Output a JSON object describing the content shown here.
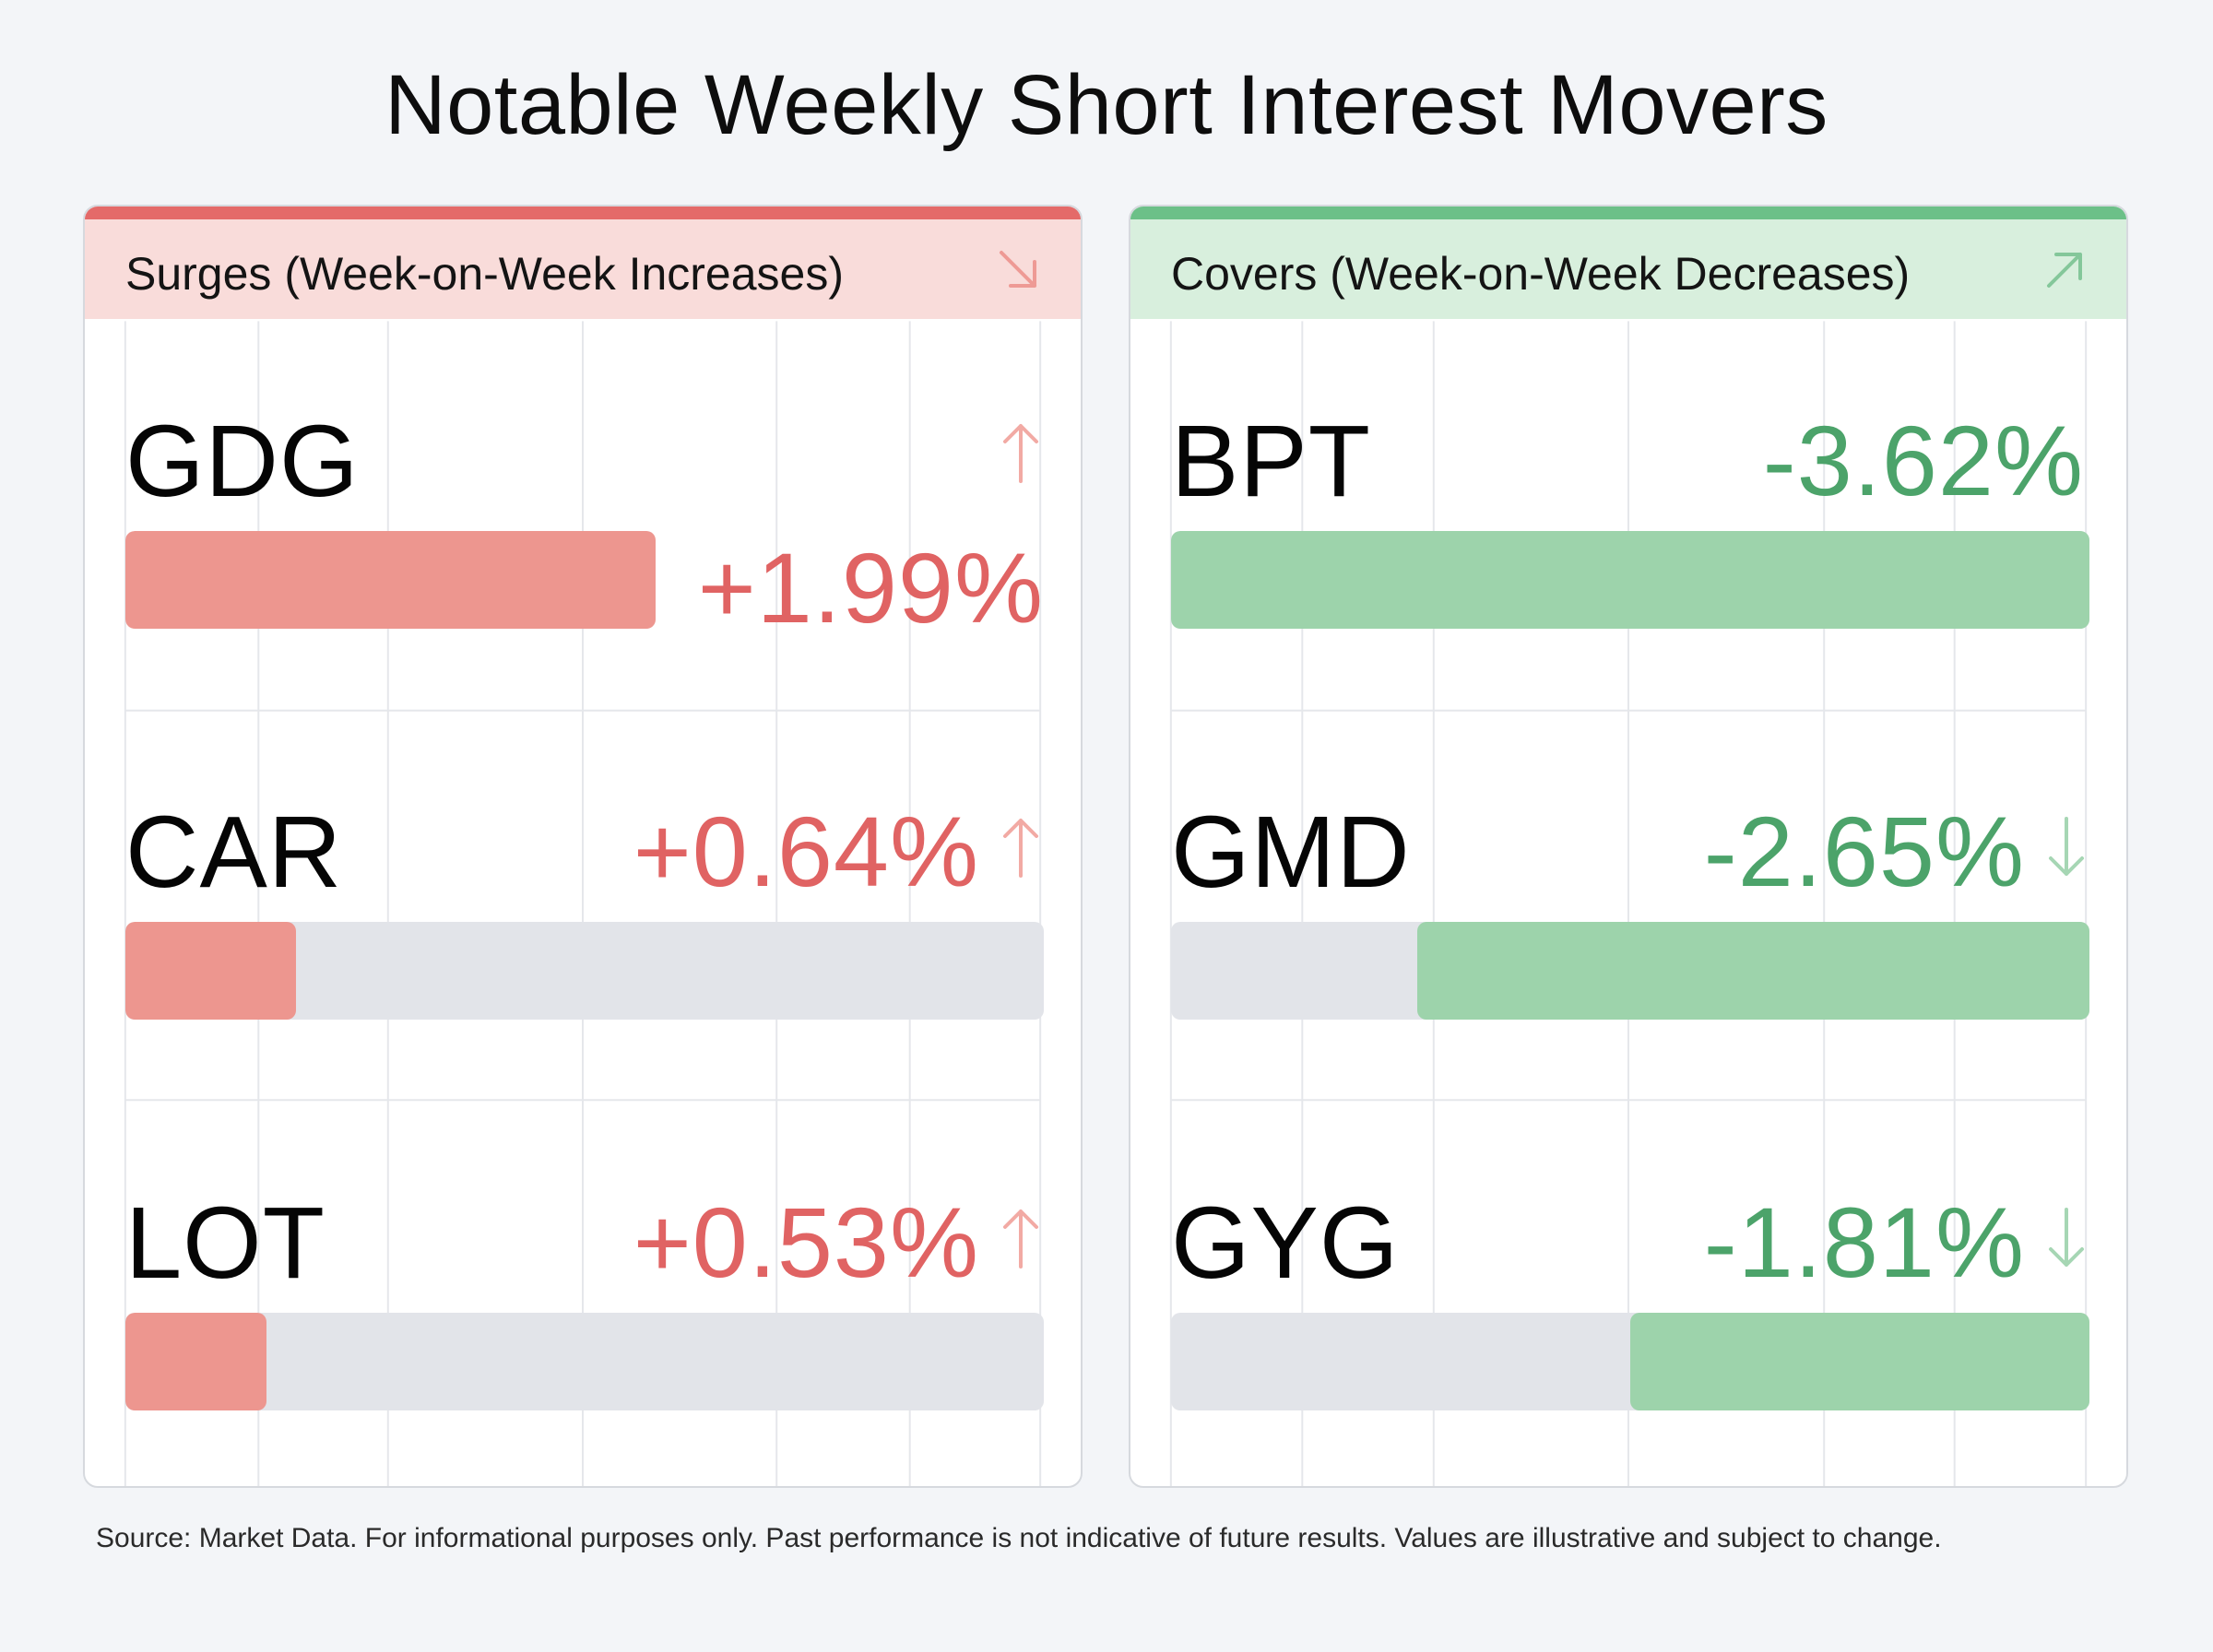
{
  "title": "Notable Weekly Short Interest Movers",
  "colors": {
    "red_accent": "#e06363",
    "red_fill": "#ed968f",
    "red_header_bg": "#f9dcda",
    "red_topbar": "#e46a69",
    "green_accent": "#4ca36a",
    "green_fill": "#9dd3ab",
    "green_header_bg": "#d8efdd",
    "green_topbar": "#6cc088",
    "track": "#e2e4e9"
  },
  "surges": {
    "title": "Surges (Week-on-Week Increases)",
    "header_icon": "arrow-down-right-icon",
    "row_icon": "arrow-up-icon"
  },
  "covers": {
    "title": "Covers (Week-on-Week Decreases)",
    "header_icon": "arrow-up-right-icon",
    "row_icon": "arrow-down-icon"
  },
  "chart_data": [
    {
      "type": "bar",
      "title": "Surges (Week-on-Week Increases)",
      "categories": [
        "GDG",
        "CAR",
        "LOT"
      ],
      "values": [
        1.99,
        0.64,
        0.53
      ],
      "labels": [
        "+1.99%",
        "+0.64%",
        "+0.53%"
      ],
      "unit": "%",
      "orientation": "horizontal",
      "scale_max": 3.45
    },
    {
      "type": "bar",
      "title": "Covers (Week-on-Week Decreases)",
      "categories": [
        "BPT",
        "GMD",
        "GYG"
      ],
      "values": [
        -3.62,
        -2.65,
        -1.81
      ],
      "labels": [
        "-3.62%",
        "-2.65%",
        "-1.81%"
      ],
      "unit": "%",
      "orientation": "horizontal",
      "scale_max": 3.62
    }
  ],
  "footnote": "Source: Market Data. For informational purposes only. Past performance is not indicative of future results. Values are illustrative and subject to change."
}
